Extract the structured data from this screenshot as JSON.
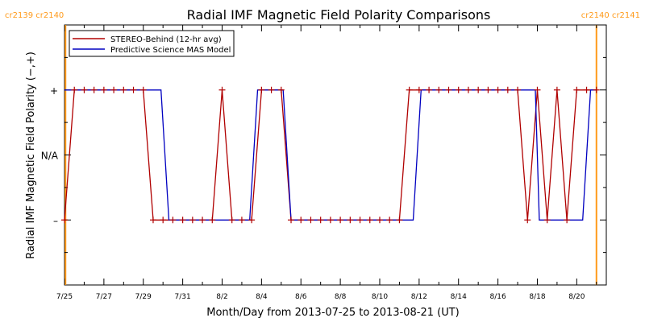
{
  "chart_data": {
    "type": "line",
    "title": "Radial IMF Magnetic Field Polarity Comparisons",
    "xlabel": "Month/Day from 2013-07-25 to 2013-08-21 (UT)",
    "ylabel": "Radial IMF Magnetic Field Polarity (−,+)",
    "x_ticks": [
      "7/25",
      "7/27",
      "7/29",
      "7/31",
      "8/2",
      "8/4",
      "8/6",
      "8/8",
      "8/10",
      "8/12",
      "8/14",
      "8/16",
      "8/18",
      "8/20"
    ],
    "y_ticks": [
      "–",
      "N/A",
      "+"
    ],
    "y_tick_values": [
      -1,
      0,
      1
    ],
    "xlim": [
      0,
      27.5
    ],
    "ylim": [
      -2,
      2
    ],
    "grid": false,
    "legend_position": "top-left",
    "markers": [
      {
        "labels": [
          "cr2139",
          "cr2140"
        ],
        "day": 0.05,
        "color": "#ff9a1a"
      },
      {
        "labels": [
          "cr2140",
          "cr2141"
        ],
        "day": 27.0,
        "color": "#ff9a1a"
      }
    ],
    "series": [
      {
        "name": "STEREO-Behind (12-hr avg)",
        "color": "#b00000",
        "marker": "+",
        "points": [
          [
            0.0,
            -1
          ],
          [
            0.5,
            1
          ],
          [
            1.0,
            1
          ],
          [
            1.5,
            1
          ],
          [
            2.0,
            1
          ],
          [
            2.5,
            1
          ],
          [
            3.0,
            1
          ],
          [
            3.5,
            1
          ],
          [
            4.0,
            1
          ],
          [
            4.5,
            -1
          ],
          [
            5.0,
            -1
          ],
          [
            5.5,
            -1
          ],
          [
            6.0,
            -1
          ],
          [
            6.5,
            -1
          ],
          [
            7.0,
            -1
          ],
          [
            7.5,
            -1
          ],
          [
            8.0,
            1
          ],
          [
            8.5,
            -1
          ],
          [
            9.0,
            -1
          ],
          [
            9.5,
            -1
          ],
          [
            10.0,
            1
          ],
          [
            10.5,
            1
          ],
          [
            11.0,
            1
          ],
          [
            11.5,
            -1
          ],
          [
            12.0,
            -1
          ],
          [
            12.5,
            -1
          ],
          [
            13.0,
            -1
          ],
          [
            13.5,
            -1
          ],
          [
            14.0,
            -1
          ],
          [
            14.5,
            -1
          ],
          [
            15.0,
            -1
          ],
          [
            15.5,
            -1
          ],
          [
            16.0,
            -1
          ],
          [
            16.5,
            -1
          ],
          [
            17.0,
            -1
          ],
          [
            17.5,
            1
          ],
          [
            18.0,
            1
          ],
          [
            18.5,
            1
          ],
          [
            19.0,
            1
          ],
          [
            19.5,
            1
          ],
          [
            20.0,
            1
          ],
          [
            20.5,
            1
          ],
          [
            21.0,
            1
          ],
          [
            21.5,
            1
          ],
          [
            22.0,
            1
          ],
          [
            22.5,
            1
          ],
          [
            23.0,
            1
          ],
          [
            23.5,
            -1
          ],
          [
            24.0,
            1
          ],
          [
            24.5,
            -1
          ],
          [
            25.0,
            1
          ],
          [
            25.5,
            -1
          ],
          [
            26.0,
            1
          ],
          [
            26.5,
            1
          ],
          [
            27.0,
            1
          ]
        ]
      },
      {
        "name": "Predictive Science MAS Model",
        "color": "#0000c0",
        "marker": "",
        "points": [
          [
            0.0,
            1
          ],
          [
            4.9,
            1
          ],
          [
            5.3,
            -1
          ],
          [
            9.4,
            -1
          ],
          [
            9.8,
            1
          ],
          [
            11.1,
            1
          ],
          [
            11.5,
            -1
          ],
          [
            17.7,
            -1
          ],
          [
            18.1,
            1
          ],
          [
            23.9,
            1
          ],
          [
            24.1,
            -1
          ],
          [
            25.0,
            -1
          ],
          [
            25.05,
            -1
          ],
          [
            26.3,
            -1
          ],
          [
            26.7,
            1
          ],
          [
            27.0,
            1
          ]
        ]
      }
    ]
  }
}
